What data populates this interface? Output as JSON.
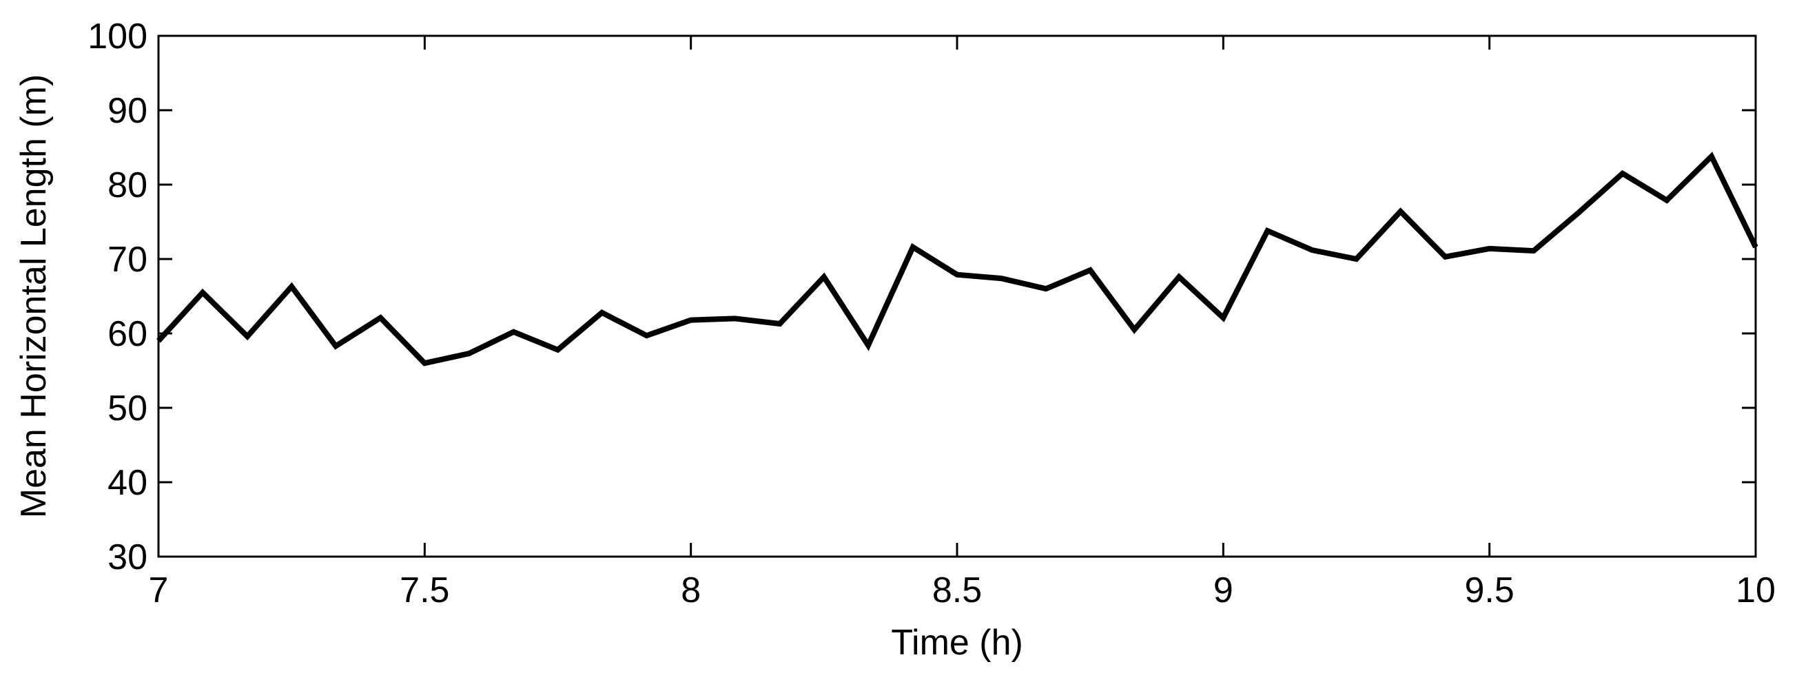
{
  "chart_data": {
    "type": "line",
    "title": "",
    "xlabel": "Time (h)",
    "ylabel": "Mean Horizontal Length (m)",
    "xlim": [
      7,
      10
    ],
    "ylim": [
      30,
      100
    ],
    "xticks": [
      7,
      7.5,
      8,
      8.5,
      9,
      9.5,
      10
    ],
    "xtick_labels": [
      "7",
      "7.5",
      "8",
      "8.5",
      "9",
      "9.5",
      "10"
    ],
    "yticks": [
      30,
      40,
      50,
      60,
      70,
      80,
      90,
      100
    ],
    "ytick_labels": [
      "30",
      "40",
      "50",
      "60",
      "70",
      "80",
      "90",
      "100"
    ],
    "grid": false,
    "legend": "none",
    "line_color": "#000000",
    "series": [
      {
        "x": [
          7.0,
          7.083,
          7.167,
          7.25,
          7.333,
          7.417,
          7.5,
          7.583,
          7.667,
          7.75,
          7.833,
          7.917,
          8.0,
          8.083,
          8.167,
          8.25,
          8.333,
          8.417,
          8.5,
          8.583,
          8.667,
          8.75,
          8.833,
          8.917,
          9.0,
          9.083,
          9.167,
          9.25,
          9.333,
          9.417,
          9.5,
          9.583,
          9.667,
          9.75,
          9.833,
          9.917,
          10.0
        ],
        "y": [
          59.0,
          65.5,
          59.6,
          66.3,
          58.3,
          62.1,
          56.0,
          57.3,
          60.2,
          57.8,
          62.8,
          59.7,
          61.8,
          62.0,
          61.3,
          67.6,
          58.4,
          71.6,
          67.9,
          67.4,
          66.0,
          68.5,
          60.5,
          67.6,
          62.1,
          73.8,
          71.2,
          70.0,
          76.4,
          70.3,
          71.4,
          71.1,
          76.2,
          81.5,
          77.9,
          83.8,
          71.6
        ]
      }
    ]
  }
}
